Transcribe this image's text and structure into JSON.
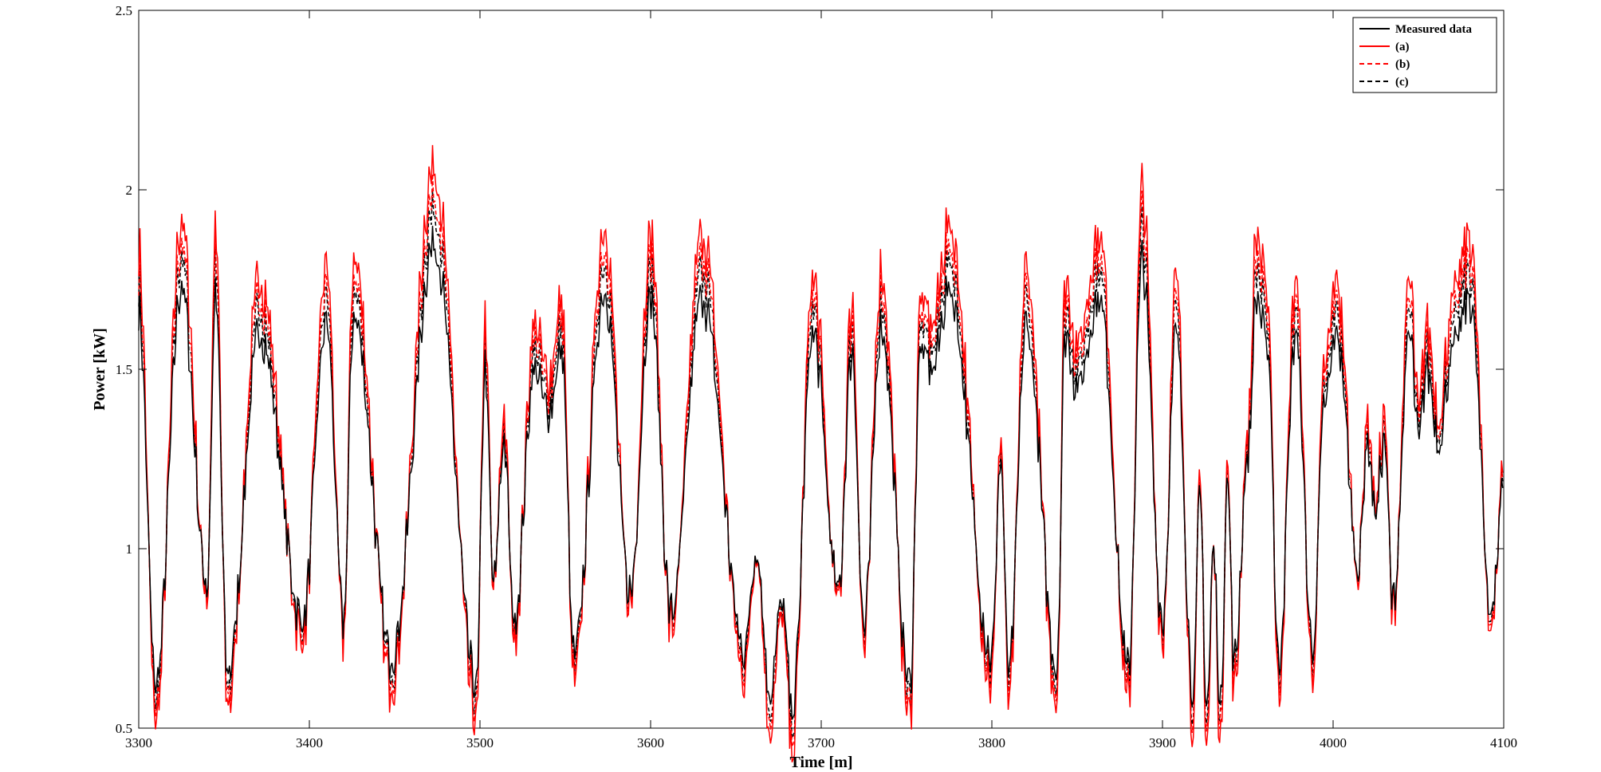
{
  "chart_data": {
    "type": "line",
    "title": "",
    "xlabel": "Time [m]",
    "ylabel": "Power [kW]",
    "xlim": [
      3300,
      4100
    ],
    "ylim": [
      0.5,
      2.5
    ],
    "xticks": [
      3300,
      3400,
      3500,
      3600,
      3700,
      3800,
      3900,
      4000,
      4100
    ],
    "yticks": [
      0.5,
      1,
      1.5,
      2,
      2.5
    ],
    "xtick_labels": [
      "3300",
      "3400",
      "3500",
      "3600",
      "3700",
      "3800",
      "3900",
      "4000",
      "4100"
    ],
    "ytick_labels": [
      "0.5",
      "1",
      "1.5",
      "2",
      "2.5"
    ],
    "grid": false,
    "legend_position": "top-right",
    "peaks": [
      {
        "x": 3300,
        "y": 1.66
      },
      {
        "x": 3310,
        "y": 0.62
      },
      {
        "x": 3325,
        "y": 1.73
      },
      {
        "x": 3340,
        "y": 0.9
      },
      {
        "x": 3345,
        "y": 1.7
      },
      {
        "x": 3352,
        "y": 0.65
      },
      {
        "x": 3371,
        "y": 1.6
      },
      {
        "x": 3396,
        "y": 0.8
      },
      {
        "x": 3410,
        "y": 1.63
      },
      {
        "x": 3420,
        "y": 0.8
      },
      {
        "x": 3426,
        "y": 1.65
      },
      {
        "x": 3448,
        "y": 0.7
      },
      {
        "x": 3473,
        "y": 1.85
      },
      {
        "x": 3498,
        "y": 0.62
      },
      {
        "x": 3503,
        "y": 1.5
      },
      {
        "x": 3508,
        "y": 0.9
      },
      {
        "x": 3514,
        "y": 1.3
      },
      {
        "x": 3520,
        "y": 0.8
      },
      {
        "x": 3532,
        "y": 1.5
      },
      {
        "x": 3540,
        "y": 1.38
      },
      {
        "x": 3548,
        "y": 1.55
      },
      {
        "x": 3555,
        "y": 0.7
      },
      {
        "x": 3573,
        "y": 1.72
      },
      {
        "x": 3588,
        "y": 0.88
      },
      {
        "x": 3600,
        "y": 1.7
      },
      {
        "x": 3612,
        "y": 0.82
      },
      {
        "x": 3630,
        "y": 1.7
      },
      {
        "x": 3655,
        "y": 0.72
      },
      {
        "x": 3662,
        "y": 1.0
      },
      {
        "x": 3670,
        "y": 0.6
      },
      {
        "x": 3677,
        "y": 0.85
      },
      {
        "x": 3683,
        "y": 0.55
      },
      {
        "x": 3695,
        "y": 1.6
      },
      {
        "x": 3710,
        "y": 0.88
      },
      {
        "x": 3718,
        "y": 1.55
      },
      {
        "x": 3725,
        "y": 0.78
      },
      {
        "x": 3735,
        "y": 1.62
      },
      {
        "x": 3752,
        "y": 0.62
      },
      {
        "x": 3758,
        "y": 1.55
      },
      {
        "x": 3765,
        "y": 1.5
      },
      {
        "x": 3775,
        "y": 1.72
      },
      {
        "x": 3800,
        "y": 0.7
      },
      {
        "x": 3805,
        "y": 1.25
      },
      {
        "x": 3810,
        "y": 0.65
      },
      {
        "x": 3820,
        "y": 1.62
      },
      {
        "x": 3838,
        "y": 0.67
      },
      {
        "x": 3843,
        "y": 1.6
      },
      {
        "x": 3850,
        "y": 1.45
      },
      {
        "x": 3863,
        "y": 1.7
      },
      {
        "x": 3880,
        "y": 0.66
      },
      {
        "x": 3888,
        "y": 1.8
      },
      {
        "x": 3900,
        "y": 0.8
      },
      {
        "x": 3908,
        "y": 1.6
      },
      {
        "x": 3918,
        "y": 0.6
      },
      {
        "x": 3922,
        "y": 1.15
      },
      {
        "x": 3926,
        "y": 0.55
      },
      {
        "x": 3930,
        "y": 1.0
      },
      {
        "x": 3934,
        "y": 0.55
      },
      {
        "x": 3938,
        "y": 1.2
      },
      {
        "x": 3942,
        "y": 0.68
      },
      {
        "x": 3950,
        "y": 1.25
      },
      {
        "x": 3955,
        "y": 1.7
      },
      {
        "x": 3962,
        "y": 1.55
      },
      {
        "x": 3968,
        "y": 0.68
      },
      {
        "x": 3978,
        "y": 1.6
      },
      {
        "x": 3988,
        "y": 0.72
      },
      {
        "x": 3995,
        "y": 1.4
      },
      {
        "x": 4002,
        "y": 1.6
      },
      {
        "x": 4015,
        "y": 0.95
      },
      {
        "x": 4020,
        "y": 1.3
      },
      {
        "x": 4025,
        "y": 1.1
      },
      {
        "x": 4030,
        "y": 1.3
      },
      {
        "x": 4035,
        "y": 0.85
      },
      {
        "x": 4045,
        "y": 1.6
      },
      {
        "x": 4050,
        "y": 1.3
      },
      {
        "x": 4055,
        "y": 1.5
      },
      {
        "x": 4062,
        "y": 1.3
      },
      {
        "x": 4070,
        "y": 1.55
      },
      {
        "x": 4080,
        "y": 1.7
      },
      {
        "x": 4093,
        "y": 0.82
      },
      {
        "x": 4100,
        "y": 1.2
      }
    ],
    "series": [
      {
        "name": "Measured data",
        "color": "#000000",
        "dash": "solid",
        "scale": 1.0
      },
      {
        "name": "(a)",
        "color": "#ff0000",
        "dash": "solid",
        "scale": 1.25
      },
      {
        "name": "(b)",
        "color": "#ff0000",
        "dash": "dashed",
        "scale": 1.16
      },
      {
        "name": "(c)",
        "color": "#000000",
        "dash": "dashed",
        "scale": 1.11
      }
    ]
  }
}
